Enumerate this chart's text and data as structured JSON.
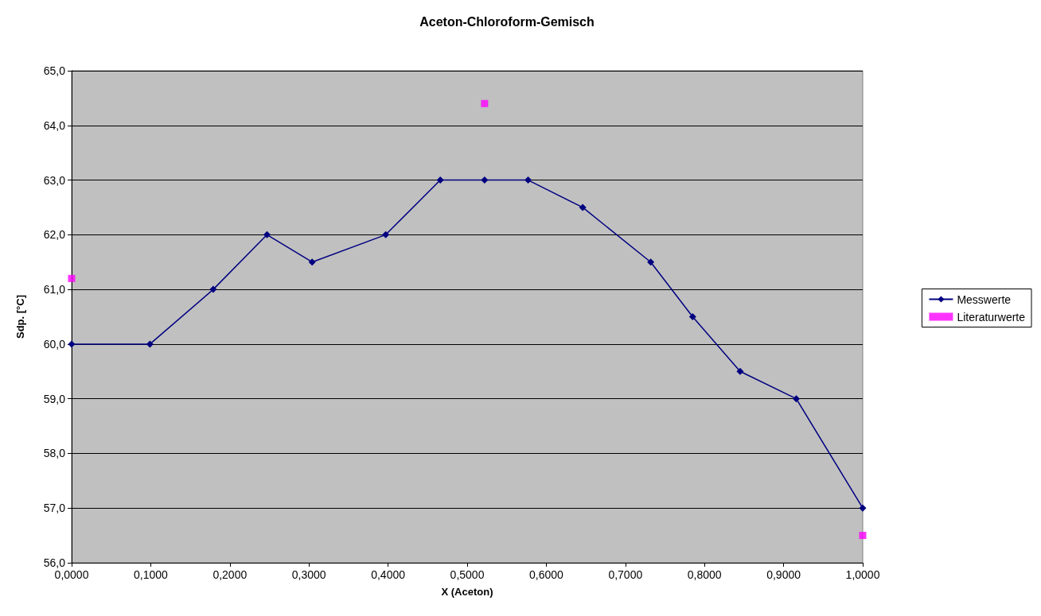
{
  "chart_data": {
    "type": "line",
    "title": "Aceton-Chloroform-Gemisch",
    "xlabel": "X (Aceton)",
    "ylabel": "Sdp. [°C]",
    "xlim": [
      0,
      1
    ],
    "ylim": [
      56,
      65
    ],
    "xticks": [
      {
        "value": 0,
        "label": "0,0000"
      },
      {
        "value": 0.1,
        "label": "0,1000"
      },
      {
        "value": 0.2,
        "label": "0,2000"
      },
      {
        "value": 0.3,
        "label": "0,3000"
      },
      {
        "value": 0.4,
        "label": "0,4000"
      },
      {
        "value": 0.5,
        "label": "0,5000"
      },
      {
        "value": 0.6,
        "label": "0,6000"
      },
      {
        "value": 0.7,
        "label": "0,7000"
      },
      {
        "value": 0.8,
        "label": "0,8000"
      },
      {
        "value": 0.9,
        "label": "0,9000"
      },
      {
        "value": 1,
        "label": "1,0000"
      }
    ],
    "yticks": [
      {
        "value": 56,
        "label": "56,0"
      },
      {
        "value": 57,
        "label": "57,0"
      },
      {
        "value": 58,
        "label": "58,0"
      },
      {
        "value": 59,
        "label": "59,0"
      },
      {
        "value": 60,
        "label": "60,0"
      },
      {
        "value": 61,
        "label": "61,0"
      },
      {
        "value": 62,
        "label": "62,0"
      },
      {
        "value": 63,
        "label": "63,0"
      },
      {
        "value": 64,
        "label": "64,0"
      },
      {
        "value": 65,
        "label": "65,0"
      }
    ],
    "grid": "y",
    "legend": "right",
    "series": [
      {
        "name": "Messwerte",
        "color": "#000080",
        "marker": "diamond",
        "line_style": "solid",
        "x": [
          0,
          0.099,
          0.179,
          0.247,
          0.304,
          0.397,
          0.466,
          0.522,
          0.577,
          0.646,
          0.732,
          0.785,
          0.845,
          0.916,
          1
        ],
        "values": [
          60,
          60,
          61,
          62,
          61.5,
          62,
          63,
          63,
          63,
          62.5,
          61.5,
          60.5,
          59.5,
          59,
          57
        ]
      },
      {
        "name": "Literaturwerte",
        "type": "scatter",
        "color": "#ff00ff",
        "marker": "square",
        "x": [
          0,
          0.522,
          1
        ],
        "values": [
          61.2,
          64.4,
          56.5
        ]
      }
    ]
  }
}
